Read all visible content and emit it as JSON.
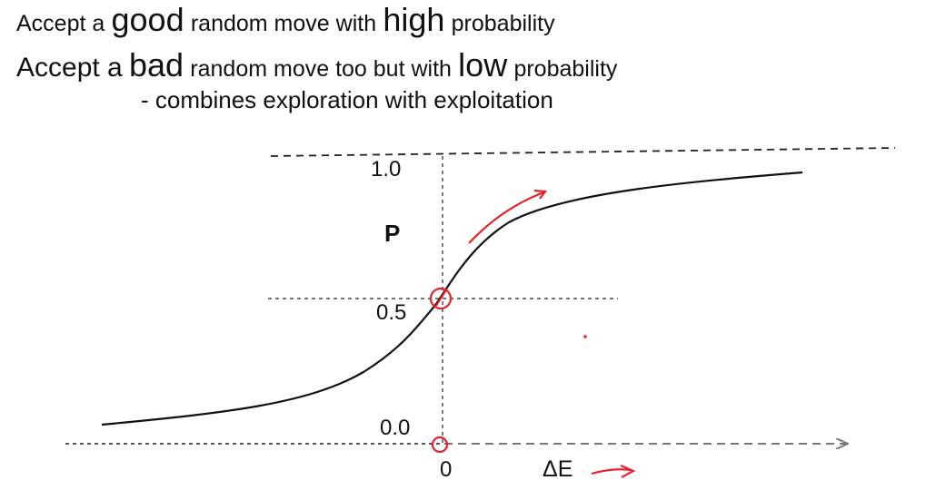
{
  "heading": {
    "line1": {
      "pre": "Accept a",
      "big": "good",
      "post": "random move with",
      "big2": "high",
      "post2": "probability"
    },
    "line2": {
      "pre": "Accept a",
      "big": "bad",
      "post": "random move too but with",
      "big2": "low",
      "post2": "probability"
    },
    "line3": "- combines exploration with exploitation"
  },
  "diagram": {
    "y_label": "P",
    "x_label": "ΔE",
    "y_ticks": [
      "1.0",
      "0.5",
      "0.0"
    ],
    "x_tick": "0",
    "annotation_color": "#e8222a"
  }
}
